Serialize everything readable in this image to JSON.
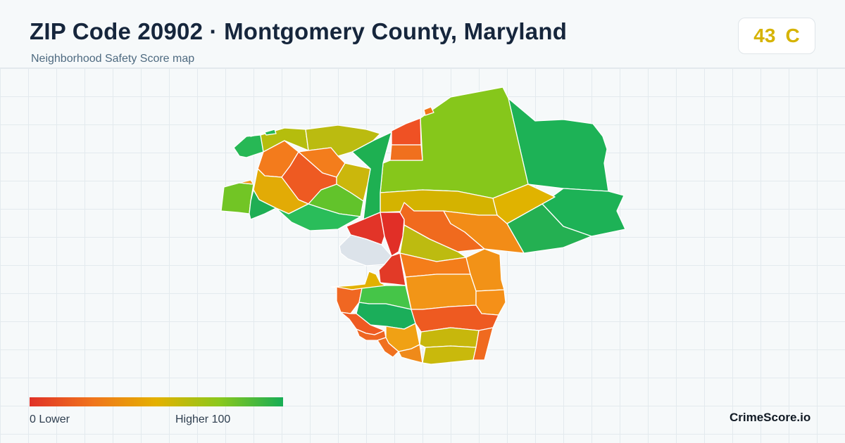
{
  "header": {
    "title": "ZIP Code 20902 · Montgomery County, Maryland",
    "subtitle": "Neighborhood Safety Score map"
  },
  "score": {
    "value": "43",
    "grade": "C",
    "color": "#d6b300"
  },
  "legend": {
    "min_label": "0  Lower",
    "max_label": "Higher  100",
    "colors": [
      "#e03127",
      "#f0751c",
      "#e4b100",
      "#8ac81d",
      "#17ad55"
    ]
  },
  "brand": "CrimeScore.io",
  "colors": {
    "background": "#f6f9fa",
    "no_data": "#dce3ea",
    "border": "#ffffff"
  }
}
